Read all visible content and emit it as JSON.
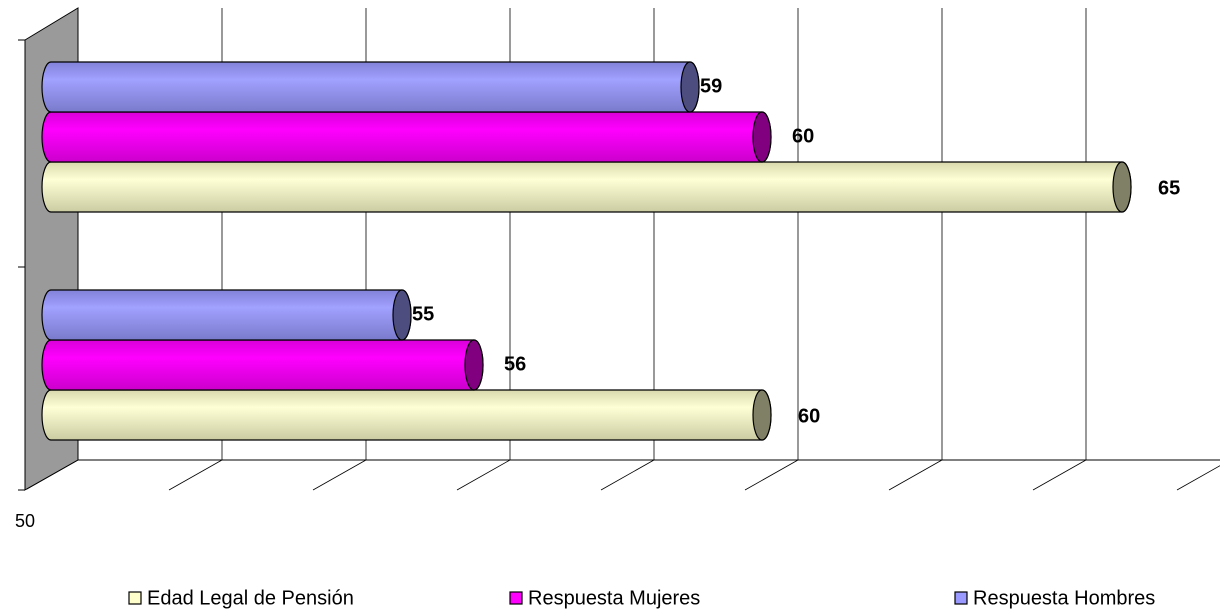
{
  "chart_data": {
    "type": "bar",
    "orientation": "horizontal",
    "categories": [
      null,
      null
    ],
    "series": [
      {
        "name": "Edad Legal de Pensión",
        "color": "#FFFFCC",
        "values": [
          60,
          65
        ]
      },
      {
        "name": "Respuesta Mujeres",
        "color": "#FF00FF",
        "values": [
          56,
          60
        ]
      },
      {
        "name": "Respuesta Hombres",
        "color": "#9999FF",
        "values": [
          55,
          59
        ]
      }
    ],
    "xlim": [
      50,
      66
    ],
    "xticks": [
      50,
      52,
      54,
      56,
      58,
      60,
      62,
      64,
      66
    ],
    "xtick_labels": [
      "50"
    ],
    "grid": true,
    "legend": "bottom"
  }
}
